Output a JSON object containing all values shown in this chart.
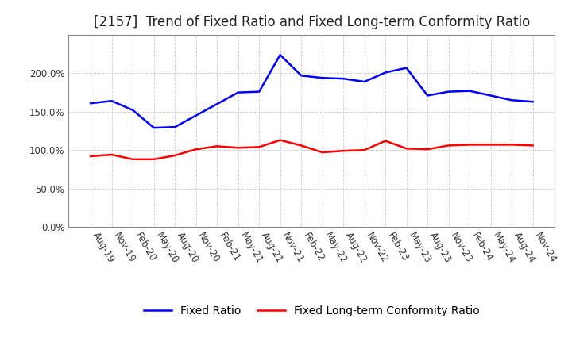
{
  "title": "[2157]  Trend of Fixed Ratio and Fixed Long-term Conformity Ratio",
  "x_labels": [
    "Aug-19",
    "Nov-19",
    "Feb-20",
    "May-20",
    "Aug-20",
    "Nov-20",
    "Feb-21",
    "May-21",
    "Aug-21",
    "Nov-21",
    "Feb-22",
    "May-22",
    "Aug-22",
    "Nov-22",
    "Feb-23",
    "May-23",
    "Aug-23",
    "Nov-23",
    "Feb-24",
    "May-24",
    "Aug-24",
    "Nov-24"
  ],
  "fixed_ratio": [
    1.61,
    1.64,
    1.52,
    1.29,
    1.3,
    1.45,
    1.6,
    1.75,
    1.76,
    2.24,
    1.97,
    1.94,
    1.93,
    1.89,
    2.01,
    2.07,
    1.71,
    1.76,
    1.77,
    1.71,
    1.65,
    1.63
  ],
  "fixed_lt_ratio": [
    0.92,
    0.94,
    0.88,
    0.88,
    0.93,
    1.01,
    1.05,
    1.03,
    1.04,
    1.13,
    1.06,
    0.97,
    0.99,
    1.0,
    1.12,
    1.02,
    1.01,
    1.06,
    1.07,
    1.07,
    1.07,
    1.06
  ],
  "fixed_ratio_color": "#0000FF",
  "fixed_lt_ratio_color": "#FF0000",
  "background_color": "#FFFFFF",
  "plot_bg_color": "#FFFFFF",
  "grid_color": "#999999",
  "ylim": [
    0.0,
    2.5
  ],
  "yticks": [
    0.0,
    0.5,
    1.0,
    1.5,
    2.0
  ],
  "legend_labels": [
    "Fixed Ratio",
    "Fixed Long-term Conformity Ratio"
  ],
  "title_fontsize": 12,
  "tick_fontsize": 8.5,
  "legend_fontsize": 10,
  "line_width": 1.8
}
